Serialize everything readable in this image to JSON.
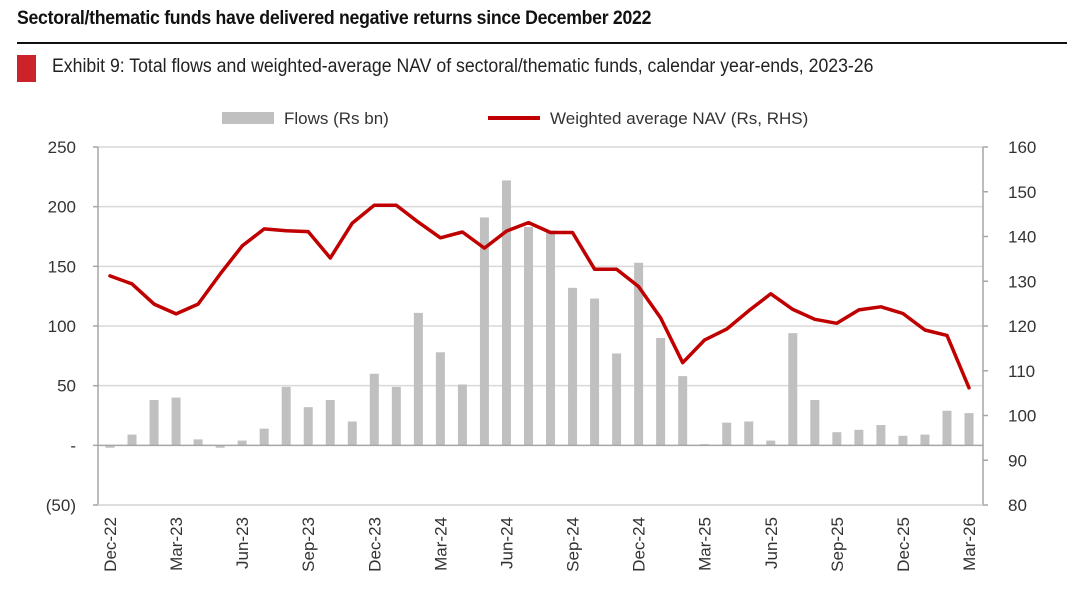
{
  "headline": "Sectoral/thematic funds have delivered negative returns since December 2022",
  "exhibit_title": "Exhibit 9: Total flows and weighted-average NAV of sectoral/thematic funds, calendar year-ends, 2023-26",
  "colors": {
    "accent": "#cc2229",
    "bar": "#c0c0c0",
    "line": "#c00000",
    "grid": "#d9d9d9",
    "axis": "#a6a6a6"
  },
  "chart_data": {
    "type": "bar+line",
    "title": "Exhibit 9: Total flows and weighted-average NAV of sectoral/thematic funds, calendar year-ends, 2023-26",
    "xlabel": "",
    "ylabel": "Flows (Rs bn)",
    "y2label": "Weighted average NAV (Rs, RHS)",
    "ylim": [
      -50,
      250
    ],
    "y2lim": [
      80,
      160
    ],
    "grid": true,
    "legend_position": "top-center",
    "yticks": [
      250,
      200,
      150,
      100,
      50,
      0,
      -50
    ],
    "ytick_labels": [
      "250",
      "200",
      "150",
      "100",
      "50",
      "-",
      "(50)"
    ],
    "y2ticks": [
      160,
      150,
      140,
      130,
      120,
      110,
      100,
      90,
      80
    ],
    "y2tick_labels": [
      "160",
      "150",
      "140",
      "130",
      "120",
      "110",
      "100",
      "90",
      "80"
    ],
    "x": [
      "Dec-22",
      "Jan-23",
      "Feb-23",
      "Mar-23",
      "Apr-23",
      "May-23",
      "Jun-23",
      "Jul-23",
      "Aug-23",
      "Sep-23",
      "Oct-23",
      "Nov-23",
      "Dec-23",
      "Jan-24",
      "Feb-24",
      "Mar-24",
      "Apr-24",
      "May-24",
      "Jun-24",
      "Jul-24",
      "Aug-24",
      "Sep-24",
      "Oct-24",
      "Nov-24",
      "Dec-24",
      "Jan-25",
      "Feb-25",
      "Mar-25",
      "Apr-25",
      "May-25",
      "Jun-25",
      "Jul-25",
      "Aug-25",
      "Sep-25",
      "Oct-25",
      "Nov-25",
      "Dec-25",
      "Jan-26",
      "Feb-26",
      "Mar-26"
    ],
    "xtick_labels": [
      "Dec-22",
      "Mar-23",
      "Jun-23",
      "Sep-23",
      "Dec-23",
      "Mar-24",
      "Jun-24",
      "Sep-24",
      "Dec-24",
      "Mar-25",
      "Jun-25",
      "Sep-25",
      "Dec-25",
      "Mar-26"
    ],
    "series": [
      {
        "name": "Flows (Rs bn)",
        "type": "bar",
        "axis": "left",
        "values": [
          -2,
          9,
          38,
          40,
          5,
          -2,
          4,
          14,
          49,
          32,
          38,
          20,
          60,
          49,
          111,
          78,
          51,
          191,
          222,
          183,
          180,
          132,
          123,
          77,
          153,
          90,
          58,
          1,
          19,
          20,
          4,
          94,
          38,
          11,
          13,
          17,
          8,
          9,
          29,
          27
        ]
      },
      {
        "name": "Weighted average NAV (Rs, RHS)",
        "type": "line",
        "axis": "right",
        "values": [
          131.2,
          129.4,
          124.9,
          122.7,
          124.9,
          131.6,
          137.9,
          141.7,
          141.3,
          141.1,
          135.2,
          143.0,
          147.0,
          147.0,
          143.2,
          139.7,
          141.0,
          137.4,
          141.2,
          143.1,
          140.9,
          140.9,
          132.7,
          132.7,
          128.8,
          121.8,
          111.8,
          116.9,
          119.3,
          123.4,
          127.2,
          123.7,
          121.5,
          120.6,
          123.6,
          124.3,
          122.8,
          119.1,
          117.9,
          106.2
        ]
      }
    ]
  }
}
